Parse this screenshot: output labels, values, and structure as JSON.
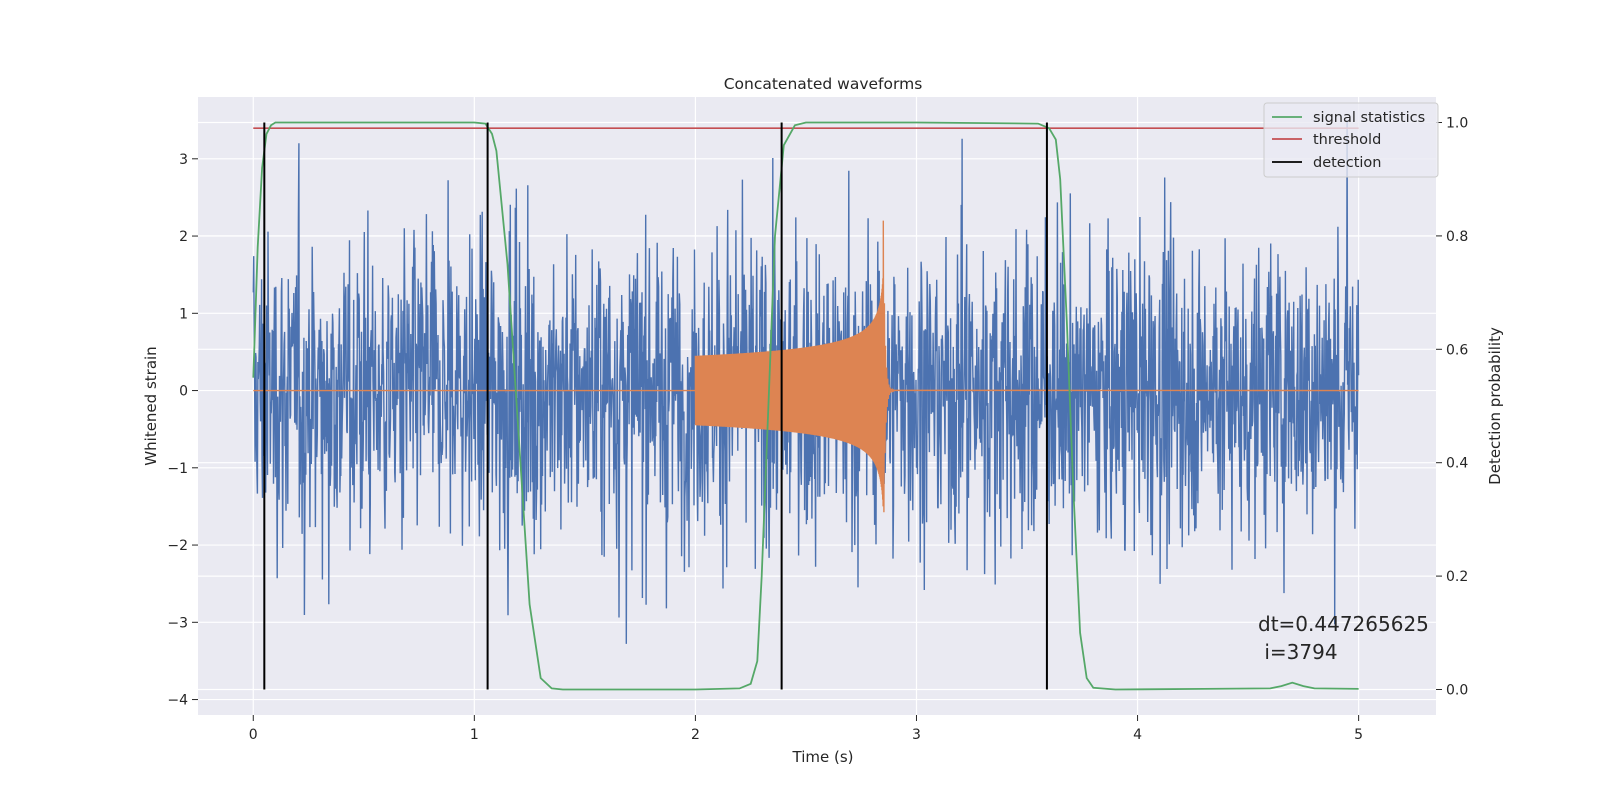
{
  "chart_data": {
    "type": "line",
    "title": "Concatenated waveforms",
    "xlabel": "Time (s)",
    "ylabel_left": "Whitened strain",
    "ylabel_right": "Detection probability",
    "xlim": [
      -0.25,
      5.35
    ],
    "ylim_left": [
      -4.2,
      3.8
    ],
    "ylim_right": [
      -0.045,
      1.045
    ],
    "xticks": [
      0,
      1,
      2,
      3,
      4,
      5
    ],
    "xtick_labels": [
      "0",
      "1",
      "2",
      "3",
      "4",
      "5"
    ],
    "yticks_left": [
      -4,
      -3,
      -2,
      -1,
      0,
      1,
      2,
      3
    ],
    "ytick_labels_left": [
      "−4",
      "−3",
      "−2",
      "−1",
      "0",
      "1",
      "2",
      "3"
    ],
    "yticks_right": [
      0.0,
      0.2,
      0.4,
      0.6,
      0.8,
      1.0
    ],
    "ytick_labels_right": [
      "0.0",
      "0.2",
      "0.4",
      "0.6",
      "0.8",
      "1.0"
    ],
    "grid": true,
    "legend_placement": "top-right",
    "legend": [
      {
        "label": "signal statistics",
        "color": "#55a868"
      },
      {
        "label": "threshold",
        "color": "#c44e52"
      },
      {
        "label": "detection",
        "color": "#000000"
      }
    ],
    "colors": {
      "strain": "#4c72b0",
      "waveform": "#dd8452",
      "background": "#eaeaf2",
      "grid": "#ffffff"
    },
    "strain_noise": {
      "x_range": [
        0,
        5
      ],
      "typical_amplitude": 1.0,
      "peak_range": [
        -3.4,
        3.5
      ]
    },
    "waveform": {
      "chirp_start": 2.0,
      "merger": 2.85,
      "start_amplitude": 0.45,
      "peak_amplitude": 2.2,
      "ringdown_end": 2.9
    },
    "signal_statistics": {
      "x": [
        0.0,
        0.02,
        0.04,
        0.06,
        0.08,
        0.1,
        0.15,
        0.5,
        1.0,
        1.05,
        1.08,
        1.1,
        1.15,
        1.2,
        1.25,
        1.3,
        1.35,
        1.4,
        1.6,
        2.0,
        2.2,
        2.25,
        2.28,
        2.3,
        2.33,
        2.36,
        2.4,
        2.45,
        2.5,
        3.0,
        3.55,
        3.6,
        3.63,
        3.65,
        3.68,
        3.71,
        3.74,
        3.77,
        3.8,
        3.9,
        4.3,
        4.6,
        4.65,
        4.7,
        4.75,
        4.8,
        5.0
      ],
      "y": [
        0.55,
        0.78,
        0.92,
        0.98,
        0.995,
        1.0,
        1.0,
        1.0,
        1.0,
        0.998,
        0.98,
        0.95,
        0.75,
        0.45,
        0.15,
        0.02,
        0.002,
        0.0,
        0.0,
        0.0,
        0.002,
        0.01,
        0.05,
        0.2,
        0.5,
        0.8,
        0.96,
        0.995,
        1.0,
        1.0,
        0.998,
        0.99,
        0.97,
        0.9,
        0.65,
        0.35,
        0.1,
        0.02,
        0.003,
        0.0,
        0.001,
        0.002,
        0.006,
        0.012,
        0.006,
        0.002,
        0.001
      ]
    },
    "threshold": {
      "value": 0.99,
      "x_range": [
        0,
        5
      ]
    },
    "detections": [
      0.05,
      1.06,
      2.39,
      3.59
    ],
    "annotation_lines": [
      "dt=0.447265625",
      " i=3794"
    ]
  }
}
